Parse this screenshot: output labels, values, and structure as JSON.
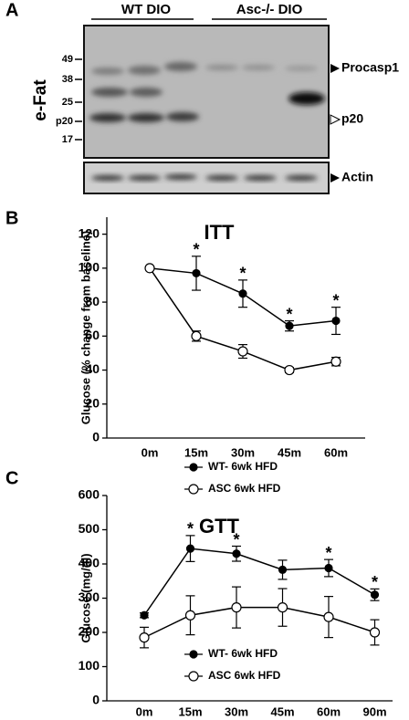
{
  "panel_a": {
    "label": "A",
    "groups": [
      "WT DIO",
      "Asc-/- DIO"
    ],
    "tissue": "e-Fat",
    "markers": [
      "49",
      "38",
      "25",
      "p20",
      "17"
    ],
    "bands": [
      "Procasp1",
      "p20"
    ],
    "loading": "Actin"
  },
  "chart_data": [
    {
      "type": "line",
      "panel": "B",
      "title": "ITT",
      "y_label": "Glucose (% change from baseline)",
      "categories": [
        "0m",
        "15m",
        "30m",
        "45m",
        "60m"
      ],
      "series": [
        {
          "name": "WT- 6wk HFD",
          "color": "#000000",
          "marker_fill": "#000000",
          "values": [
            100,
            97,
            85,
            66,
            69
          ],
          "errors": [
            0,
            10,
            8,
            3,
            8
          ]
        },
        {
          "name": "ASC 6wk HFD",
          "color": "#000000",
          "marker_fill": "#ffffff",
          "values": [
            100,
            60,
            51,
            40,
            45
          ],
          "errors": [
            0,
            3,
            4,
            1.5,
            2.5
          ]
        }
      ],
      "significance": [
        null,
        "*",
        "*",
        "*",
        "*"
      ],
      "ylim": [
        0,
        130
      ],
      "yticks": [
        0,
        20,
        40,
        60,
        80,
        100,
        120
      ]
    },
    {
      "type": "line",
      "panel": "C",
      "title": "GTT",
      "y_label": "Glucose (mg/dl)",
      "categories": [
        "0m",
        "15m",
        "30m",
        "45m",
        "60m",
        "90m"
      ],
      "series": [
        {
          "name": "WT- 6wk HFD",
          "color": "#000000",
          "marker_fill": "#000000",
          "values": [
            250,
            445,
            430,
            383,
            388,
            310
          ],
          "errors": [
            7,
            38,
            22,
            28,
            25,
            17
          ]
        },
        {
          "name": "ASC 6wk HFD",
          "color": "#000000",
          "marker_fill": "#ffffff",
          "values": [
            185,
            250,
            273,
            273,
            245,
            200
          ],
          "errors": [
            30,
            57,
            60,
            55,
            60,
            37
          ]
        }
      ],
      "significance": [
        null,
        "*",
        "*",
        null,
        "*",
        "*"
      ],
      "ylim": [
        0,
        600
      ],
      "yticks": [
        0,
        100,
        200,
        300,
        400,
        500,
        600
      ]
    }
  ]
}
